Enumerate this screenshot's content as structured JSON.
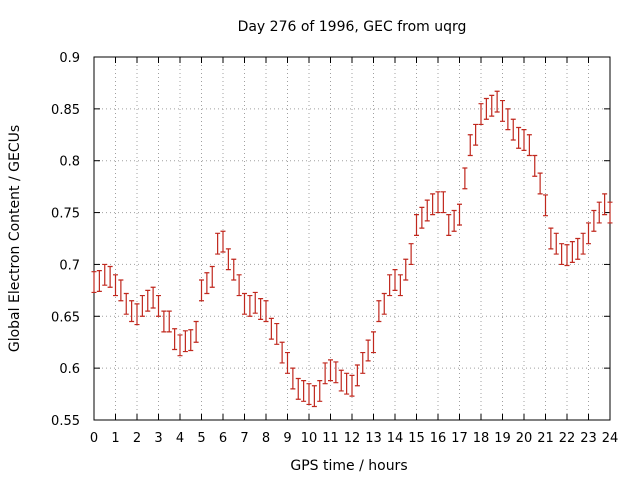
{
  "chart_data": {
    "type": "scatter",
    "title": "Day 276 of 1996, GEC from uqrg",
    "xlabel": "GPS time / hours",
    "ylabel": "Global Electron Content / GECUs",
    "xlim": [
      0,
      24
    ],
    "ylim": [
      0.55,
      0.9
    ],
    "grid": true,
    "legend": "none",
    "color": "#c0281e",
    "xticks": [
      "0",
      "1",
      "2",
      "3",
      "4",
      "5",
      "6",
      "7",
      "8",
      "9",
      "10",
      "11",
      "12",
      "13",
      "14",
      "15",
      "16",
      "17",
      "18",
      "19",
      "20",
      "21",
      "22",
      "23",
      "24"
    ],
    "yticks": [
      "0.55",
      "0.6",
      "0.65",
      "0.7",
      "0.75",
      "0.8",
      "0.85",
      "0.9"
    ],
    "x": [
      0.0,
      0.25,
      0.5,
      0.75,
      1.0,
      1.25,
      1.5,
      1.75,
      2.0,
      2.25,
      2.5,
      2.75,
      3.0,
      3.25,
      3.5,
      3.75,
      4.0,
      4.25,
      4.5,
      4.75,
      5.0,
      5.25,
      5.5,
      5.75,
      6.0,
      6.25,
      6.5,
      6.75,
      7.0,
      7.25,
      7.5,
      7.75,
      8.0,
      8.25,
      8.5,
      8.75,
      9.0,
      9.25,
      9.5,
      9.75,
      10.0,
      10.25,
      10.5,
      10.75,
      11.0,
      11.25,
      11.5,
      11.75,
      12.0,
      12.25,
      12.5,
      12.75,
      13.0,
      13.25,
      13.5,
      13.75,
      14.0,
      14.25,
      14.5,
      14.75,
      15.0,
      15.25,
      15.5,
      15.75,
      16.0,
      16.25,
      16.5,
      16.75,
      17.0,
      17.25,
      17.5,
      17.75,
      18.0,
      18.25,
      18.5,
      18.75,
      19.0,
      19.25,
      19.5,
      19.75,
      20.0,
      20.25,
      20.5,
      20.75,
      21.0,
      21.25,
      21.5,
      21.75,
      22.0,
      22.25,
      22.5,
      22.75,
      23.0,
      23.25,
      23.5,
      23.75,
      24.0
    ],
    "y": [
      0.683,
      0.684,
      0.69,
      0.688,
      0.68,
      0.675,
      0.662,
      0.655,
      0.652,
      0.66,
      0.665,
      0.668,
      0.66,
      0.645,
      0.645,
      0.628,
      0.622,
      0.626,
      0.627,
      0.635,
      0.675,
      0.682,
      0.688,
      0.72,
      0.722,
      0.705,
      0.695,
      0.68,
      0.662,
      0.66,
      0.663,
      0.657,
      0.655,
      0.638,
      0.633,
      0.615,
      0.605,
      0.59,
      0.58,
      0.578,
      0.575,
      0.573,
      0.578,
      0.595,
      0.598,
      0.596,
      0.588,
      0.585,
      0.583,
      0.593,
      0.605,
      0.617,
      0.625,
      0.655,
      0.662,
      0.68,
      0.685,
      0.68,
      0.695,
      0.71,
      0.738,
      0.745,
      0.752,
      0.758,
      0.76,
      0.76,
      0.738,
      0.742,
      0.748,
      0.783,
      0.815,
      0.825,
      0.845,
      0.85,
      0.853,
      0.857,
      0.848,
      0.84,
      0.83,
      0.822,
      0.82,
      0.815,
      0.795,
      0.778,
      0.757,
      0.725,
      0.72,
      0.71,
      0.709,
      0.712,
      0.715,
      0.72,
      0.73,
      0.742,
      0.75,
      0.758,
      0.75
    ],
    "errors": [
      0.01,
      0.01,
      0.01,
      0.01,
      0.01,
      0.01,
      0.01,
      0.01,
      0.01,
      0.01,
      0.01,
      0.01,
      0.01,
      0.01,
      0.01,
      0.01,
      0.01,
      0.01,
      0.01,
      0.01,
      0.01,
      0.01,
      0.01,
      0.01,
      0.01,
      0.01,
      0.01,
      0.01,
      0.01,
      0.01,
      0.01,
      0.01,
      0.01,
      0.01,
      0.01,
      0.01,
      0.01,
      0.01,
      0.01,
      0.01,
      0.01,
      0.01,
      0.01,
      0.01,
      0.01,
      0.01,
      0.01,
      0.01,
      0.01,
      0.01,
      0.01,
      0.01,
      0.01,
      0.01,
      0.01,
      0.01,
      0.01,
      0.01,
      0.01,
      0.01,
      0.01,
      0.01,
      0.01,
      0.01,
      0.01,
      0.01,
      0.01,
      0.01,
      0.01,
      0.01,
      0.01,
      0.01,
      0.01,
      0.01,
      0.01,
      0.01,
      0.01,
      0.01,
      0.01,
      0.01,
      0.01,
      0.01,
      0.01,
      0.01,
      0.01,
      0.01,
      0.01,
      0.01,
      0.01,
      0.01,
      0.01,
      0.01,
      0.01,
      0.01,
      0.01,
      0.01,
      0.01
    ]
  }
}
